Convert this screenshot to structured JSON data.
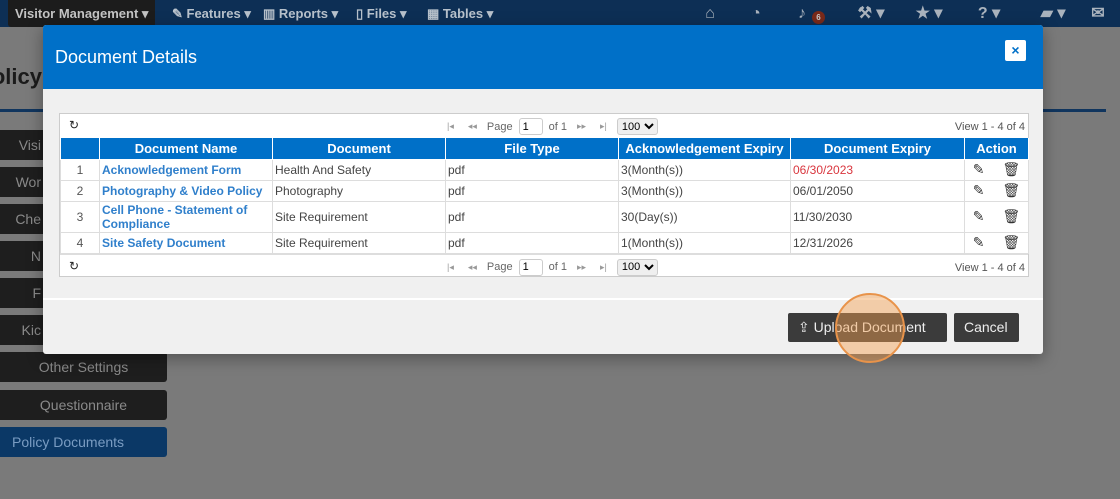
{
  "navbar": {
    "app_menu": "Visitor Management",
    "menus": [
      "Features",
      "Reports",
      "Files",
      "Tables"
    ],
    "icons": [
      "home-icon",
      "dashboard-icon",
      "bell-icon",
      "wrench-icon",
      "star-icon",
      "help-icon",
      "book-icon",
      "envelope-icon"
    ],
    "notification_count": "6"
  },
  "page": {
    "title": "olicy"
  },
  "sidebar": {
    "items": [
      {
        "label": "Visi"
      },
      {
        "label": "Wor"
      },
      {
        "label": "Che"
      },
      {
        "label": "N"
      },
      {
        "label": "F"
      },
      {
        "label": "Kic"
      },
      {
        "label": "Other Settings"
      },
      {
        "label": "Questionnaire"
      },
      {
        "label": "Policy Documents",
        "active": true
      }
    ]
  },
  "modal": {
    "title": "Document Details",
    "close": "×",
    "pager": {
      "page_label": "Page",
      "page": "1",
      "of": "of 1",
      "page_size": "100",
      "view": "View 1 - 4 of 4"
    },
    "columns": [
      "",
      "Document Name",
      "Document",
      "File Type",
      "Acknowledgement Expiry",
      "Document Expiry",
      "Action"
    ],
    "rows": [
      {
        "n": "1",
        "name": "Acknowledgement Form",
        "document": "Health And Safety",
        "type": "pdf",
        "ack": "3(Month(s))",
        "expiry": "06/30/2023",
        "expired": true
      },
      {
        "n": "2",
        "name": "Photography & Video Policy",
        "document": "Photography",
        "type": "pdf",
        "ack": "3(Month(s))",
        "expiry": "06/01/2050"
      },
      {
        "n": "3",
        "name": "Cell Phone - Statement of Compliance",
        "document": "Site Requirement",
        "type": "pdf",
        "ack": "30(Day(s))",
        "expiry": "11/30/2030"
      },
      {
        "n": "4",
        "name": "Site Safety Document",
        "document": "Site Requirement",
        "type": "pdf",
        "ack": "1(Month(s))",
        "expiry": "12/31/2026"
      }
    ],
    "upload_label": "Upload Document",
    "cancel_label": "Cancel"
  },
  "colors": {
    "header": "#0070c8",
    "link": "#2f7fcb",
    "expired": "#d9363e",
    "navbar": "#0d2f55"
  }
}
